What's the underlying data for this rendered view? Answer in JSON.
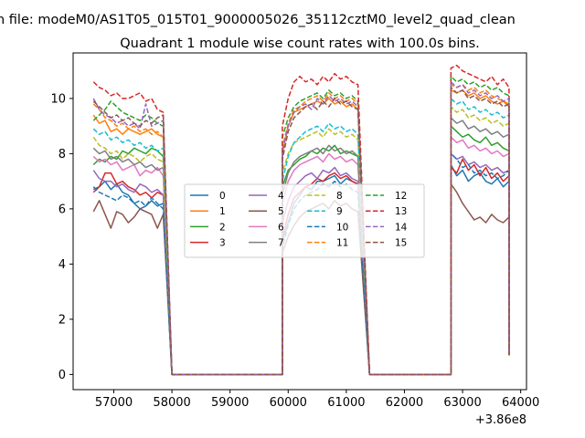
{
  "suptitle": "n file: modeM0/AS1T05_015T01_9000005026_35112cztM0_level2_quad_clean",
  "title": "Quadrant 1 module wise count rates with 100.0s bins.",
  "chart_data": {
    "type": "line",
    "title": "Quadrant 1 module wise count rates with 100.0s bins.",
    "xlabel": "",
    "ylabel": "",
    "x_offset_label": "+3.86e8",
    "xlim": [
      56300,
      64100
    ],
    "ylim": [
      -0.55,
      11.65
    ],
    "xticks": [
      57000,
      58000,
      59000,
      60000,
      61000,
      62000,
      63000,
      64000
    ],
    "xtick_labels": [
      "57000",
      "58000",
      "59000",
      "60000",
      "61000",
      "62000",
      "63000",
      "64000"
    ],
    "yticks": [
      0,
      2,
      4,
      6,
      8,
      10
    ],
    "ytick_labels": [
      "0",
      "2",
      "4",
      "6",
      "8",
      "10"
    ],
    "grid": false,
    "legend_position": "center",
    "legend_columns": 4,
    "segments": [
      {
        "start": 56650,
        "step": 100,
        "count": 13
      },
      {
        "start": 59900,
        "step": 100,
        "count": 14
      },
      {
        "start": 62800,
        "step": 100,
        "count": 11
      }
    ],
    "zero_x": [
      58000,
      59000,
      59900,
      61400,
      62000,
      62800
    ],
    "tail_value": 0.7,
    "x_end": 63800,
    "series": [
      {
        "name": "0",
        "color": "#1f77b4",
        "dash": "solid",
        "values": [
          [
            6.7,
            6.8,
            7.0,
            6.7,
            6.9,
            6.6,
            6.5,
            6.2,
            6.0,
            6.1,
            6.3,
            6.1,
            6.2
          ],
          [
            4.8,
            5.5,
            6.2,
            6.5,
            6.8,
            6.7,
            7.0,
            7.0,
            7.1,
            7.2,
            6.9,
            7.1,
            7.0,
            6.9
          ],
          [
            7.6,
            7.2,
            7.4,
            7.0,
            7.2,
            7.3,
            7.0,
            6.9,
            7.1,
            6.8,
            7.0
          ]
        ]
      },
      {
        "name": "1",
        "color": "#ff7f0e",
        "dash": "solid",
        "values": [
          [
            9.4,
            9.1,
            9.2,
            8.8,
            8.9,
            8.7,
            8.9,
            8.8,
            8.7,
            8.8,
            8.9,
            8.7,
            8.6
          ],
          [
            8.0,
            9.0,
            9.5,
            9.6,
            9.7,
            9.8,
            9.9,
            9.8,
            10.0,
            9.8,
            9.9,
            9.7,
            9.8,
            9.6
          ],
          [
            10.3,
            10.2,
            10.3,
            10.1,
            10.2,
            10.0,
            10.1,
            9.9,
            9.8,
            9.9,
            9.7
          ]
        ]
      },
      {
        "name": "2",
        "color": "#2ca02c",
        "dash": "solid",
        "values": [
          [
            7.6,
            7.8,
            7.7,
            7.9,
            7.8,
            8.1,
            8.0,
            8.2,
            8.1,
            8.0,
            8.2,
            8.1,
            7.9
          ],
          [
            6.8,
            7.4,
            7.6,
            7.8,
            7.9,
            8.1,
            8.0,
            8.2,
            8.1,
            8.3,
            8.0,
            8.1,
            8.0,
            7.9
          ],
          [
            9.0,
            8.8,
            8.6,
            8.7,
            8.5,
            8.4,
            8.6,
            8.3,
            8.4,
            8.2,
            8.1
          ]
        ]
      },
      {
        "name": "3",
        "color": "#d62728",
        "dash": "solid",
        "values": [
          [
            6.6,
            6.8,
            7.3,
            7.3,
            6.9,
            7.0,
            6.8,
            6.7,
            6.5,
            6.6,
            6.4,
            6.6,
            6.5
          ],
          [
            4.9,
            5.8,
            6.4,
            6.6,
            6.8,
            6.9,
            7.1,
            7.0,
            7.2,
            7.3,
            7.1,
            7.2,
            7.0,
            6.9
          ],
          [
            7.5,
            7.3,
            7.8,
            7.4,
            7.6,
            7.2,
            7.5,
            7.1,
            7.3,
            7.0,
            7.2
          ]
        ]
      },
      {
        "name": "4",
        "color": "#9467bd",
        "dash": "solid",
        "values": [
          [
            7.4,
            7.1,
            7.0,
            7.0,
            6.8,
            6.9,
            6.7,
            6.6,
            6.9,
            6.8,
            6.6,
            6.7,
            6.5
          ],
          [
            5.5,
            6.3,
            6.8,
            7.0,
            7.2,
            7.3,
            7.1,
            7.4,
            7.3,
            7.5,
            7.2,
            7.3,
            7.1,
            7.0
          ],
          [
            8.0,
            7.8,
            7.9,
            7.6,
            7.7,
            7.5,
            7.6,
            7.4,
            7.5,
            7.3,
            7.4
          ]
        ]
      },
      {
        "name": "5",
        "color": "#8c564b",
        "dash": "solid",
        "values": [
          [
            5.9,
            6.3,
            5.8,
            5.3,
            5.9,
            5.8,
            5.5,
            5.7,
            6.0,
            5.9,
            5.8,
            5.3,
            5.8
          ],
          [
            4.4,
            5.0,
            5.4,
            5.7,
            5.9,
            6.0,
            6.1,
            6.2,
            6.0,
            6.3,
            6.1,
            6.2,
            6.0,
            5.9
          ],
          [
            6.9,
            6.6,
            6.2,
            5.9,
            5.6,
            5.7,
            5.5,
            5.8,
            5.6,
            5.5,
            5.7
          ]
        ]
      },
      {
        "name": "6",
        "color": "#e377c2",
        "dash": "solid",
        "values": [
          [
            7.9,
            7.7,
            7.8,
            7.6,
            7.7,
            7.4,
            7.5,
            7.6,
            7.2,
            7.4,
            7.3,
            7.5,
            7.2
          ],
          [
            6.2,
            7.0,
            7.4,
            7.6,
            7.7,
            7.8,
            7.9,
            7.7,
            8.0,
            7.8,
            7.9,
            7.7,
            7.8,
            7.6
          ],
          [
            8.6,
            8.4,
            8.5,
            8.2,
            8.3,
            8.1,
            8.2,
            8.0,
            8.1,
            7.9,
            8.0
          ]
        ]
      },
      {
        "name": "7",
        "color": "#7f7f7f",
        "dash": "solid",
        "values": [
          [
            8.2,
            8.0,
            8.1,
            7.8,
            7.9,
            7.7,
            7.8,
            7.6,
            7.7,
            7.5,
            7.6,
            7.4,
            7.5
          ],
          [
            6.5,
            7.3,
            7.7,
            7.9,
            8.0,
            8.1,
            8.2,
            8.0,
            8.3,
            8.1,
            8.2,
            8.0,
            8.1,
            7.9
          ],
          [
            9.3,
            9.1,
            9.2,
            8.9,
            9.0,
            8.8,
            8.9,
            8.7,
            8.8,
            8.6,
            8.7
          ]
        ]
      },
      {
        "name": "8",
        "color": "#bcbd22",
        "dash": "dashed",
        "values": [
          [
            8.6,
            8.3,
            8.2,
            8.0,
            8.1,
            7.8,
            8.0,
            7.9,
            7.7,
            7.9,
            8.0,
            7.8,
            7.7
          ],
          [
            7.3,
            8.0,
            8.4,
            8.5,
            8.6,
            8.7,
            8.8,
            8.6,
            8.9,
            8.7,
            8.8,
            8.6,
            8.7,
            8.5
          ],
          [
            9.7,
            9.5,
            9.6,
            9.3,
            9.4,
            9.2,
            9.3,
            9.1,
            9.2,
            9.0,
            9.1
          ]
        ]
      },
      {
        "name": "9",
        "color": "#17becf",
        "dash": "dashed",
        "values": [
          [
            8.9,
            8.7,
            8.8,
            8.5,
            8.6,
            8.4,
            8.5,
            8.3,
            8.4,
            8.2,
            8.3,
            8.1,
            8.2
          ],
          [
            7.0,
            7.9,
            8.4,
            8.6,
            8.8,
            8.9,
            9.0,
            8.8,
            9.1,
            8.9,
            9.0,
            8.8,
            8.9,
            8.7
          ],
          [
            10.0,
            9.8,
            9.9,
            9.6,
            9.7,
            9.5,
            9.6,
            9.4,
            9.5,
            9.3,
            9.4
          ]
        ]
      },
      {
        "name": "10",
        "color": "#1f77b4",
        "dash": "dashed",
        "values": [
          [
            6.8,
            6.6,
            6.5,
            6.4,
            6.3,
            6.5,
            6.4,
            6.2,
            6.3,
            6.1,
            6.4,
            6.2,
            6.0
          ],
          [
            4.6,
            5.4,
            6.0,
            6.3,
            6.5,
            6.6,
            6.7,
            6.9,
            6.8,
            7.0,
            6.8,
            6.9,
            6.7,
            6.6
          ],
          [
            8.0,
            7.8,
            7.5,
            7.6,
            7.3,
            7.4,
            7.2,
            7.3,
            7.1,
            7.2,
            7.4
          ]
        ]
      },
      {
        "name": "11",
        "color": "#ff7f0e",
        "dash": "dashed",
        "values": [
          [
            9.8,
            9.6,
            9.3,
            9.2,
            9.0,
            9.1,
            8.9,
            9.0,
            8.8,
            8.9,
            8.7,
            8.8,
            8.6
          ],
          [
            8.2,
            9.1,
            9.6,
            9.7,
            9.9,
            10.0,
            10.1,
            9.9,
            10.2,
            10.0,
            10.1,
            9.9,
            10.0,
            9.8
          ],
          [
            10.5,
            10.4,
            10.5,
            10.3,
            10.4,
            10.2,
            10.3,
            10.1,
            10.0,
            9.9,
            9.8
          ]
        ]
      },
      {
        "name": "12",
        "color": "#2ca02c",
        "dash": "dashed",
        "values": [
          [
            9.2,
            9.4,
            9.6,
            9.9,
            9.7,
            9.5,
            9.4,
            9.3,
            9.2,
            9.4,
            9.3,
            9.1,
            9.0
          ],
          [
            8.6,
            9.3,
            9.7,
            9.9,
            10.0,
            10.1,
            10.2,
            10.0,
            10.3,
            10.1,
            10.2,
            10.0,
            10.1,
            9.9
          ],
          [
            10.8,
            10.6,
            10.7,
            10.5,
            10.6,
            10.4,
            10.5,
            10.3,
            10.4,
            10.2,
            10.1
          ]
        ]
      },
      {
        "name": "13",
        "color": "#d62728",
        "dash": "dashed",
        "values": [
          [
            10.6,
            10.4,
            10.3,
            10.1,
            10.2,
            10.0,
            10.0,
            10.1,
            10.2,
            9.9,
            10.0,
            9.6,
            9.5
          ],
          [
            9.0,
            10.0,
            10.6,
            10.8,
            10.6,
            10.7,
            10.5,
            10.8,
            10.6,
            10.9,
            10.7,
            10.8,
            10.6,
            10.5
          ],
          [
            11.1,
            11.2,
            11.0,
            10.9,
            10.8,
            10.7,
            10.6,
            10.8,
            10.5,
            10.7,
            10.4
          ]
        ]
      },
      {
        "name": "14",
        "color": "#9467bd",
        "dash": "dashed",
        "values": [
          [
            10.0,
            9.6,
            9.4,
            9.3,
            9.1,
            9.2,
            9.0,
            9.1,
            8.9,
            9.8,
            9.0,
            9.1,
            9.2
          ],
          [
            8.1,
            9.0,
            9.5,
            9.7,
            9.8,
            9.6,
            10.0,
            9.8,
            10.1,
            9.9,
            10.0,
            9.8,
            9.9,
            9.7
          ],
          [
            10.6,
            10.4,
            10.5,
            10.2,
            10.3,
            10.1,
            10.2,
            10.0,
            10.1,
            9.9,
            10.0
          ]
        ]
      },
      {
        "name": "15",
        "color": "#8c564b",
        "dash": "dashed",
        "values": [
          [
            9.9,
            9.7,
            9.5,
            9.3,
            9.4,
            9.2,
            9.3,
            9.1,
            9.0,
            9.2,
            9.1,
            9.3,
            9.4
          ],
          [
            7.8,
            8.8,
            9.3,
            9.5,
            9.7,
            9.8,
            9.6,
            9.9,
            9.7,
            10.0,
            9.8,
            9.9,
            9.7,
            9.6
          ],
          [
            10.4,
            10.2,
            10.3,
            10.0,
            10.1,
            9.9,
            10.0,
            9.8,
            9.9,
            9.7,
            9.8
          ]
        ]
      }
    ]
  }
}
